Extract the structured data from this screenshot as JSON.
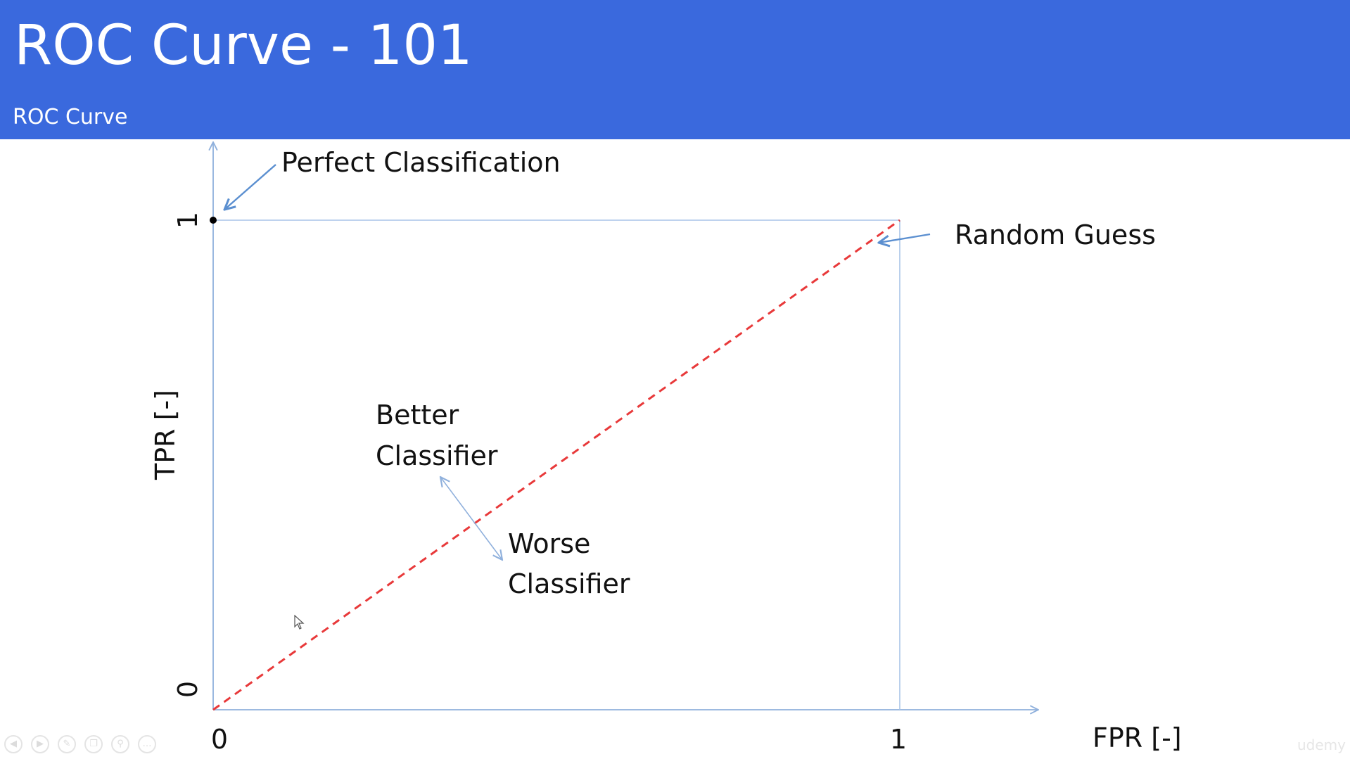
{
  "slide": {
    "title": "ROC Curve - 101",
    "subtitle": "ROC Curve"
  },
  "colors": {
    "header_bg": "#3a69dd",
    "axis": "#8fb0dc",
    "frame": "#a9c4e8",
    "random_line": "#e8393a",
    "annotation_arrow": "#5b8fd0",
    "text": "#111111"
  },
  "chart_data": {
    "type": "line",
    "xlabel": "FPR [-]",
    "ylabel": "TPR [-]",
    "xlim": [
      0,
      1
    ],
    "ylim": [
      0,
      1
    ],
    "x_ticks": [
      "0",
      "1"
    ],
    "y_ticks": [
      "0",
      "1"
    ],
    "series": [
      {
        "name": "Random Guess",
        "style": "dashed",
        "x": [
          0,
          1
        ],
        "y": [
          0,
          1
        ]
      }
    ],
    "points": [
      {
        "name": "Perfect Classification",
        "x": 0,
        "y": 1
      }
    ],
    "annotations": {
      "perfect": "Perfect Classification",
      "random": "Random Guess",
      "better_line1": "Better",
      "better_line2": "Classifier",
      "worse_line1": "Worse",
      "worse_line2": "Classifier"
    }
  },
  "player": {
    "controls": [
      "prev-icon",
      "play-icon",
      "pen-icon",
      "copy-icon",
      "zoom-icon",
      "more-icon"
    ],
    "watermark": "udemy"
  }
}
